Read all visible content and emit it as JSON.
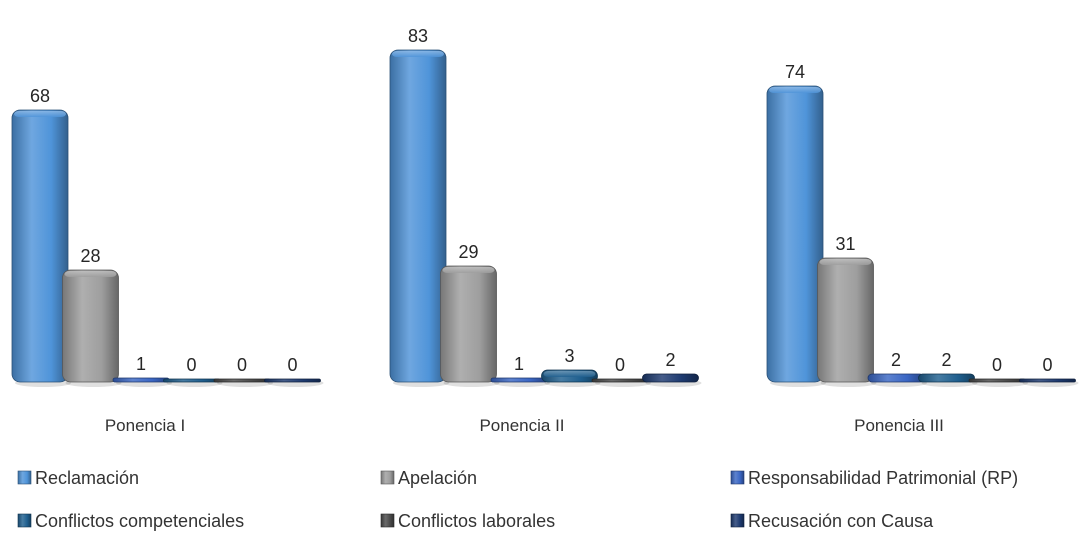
{
  "chart_data": {
    "type": "bar",
    "title": "",
    "xlabel": "",
    "ylabel": "",
    "ylim": [
      0,
      85
    ],
    "grid": false,
    "legend_position": "bottom",
    "categories": [
      "Ponencia I",
      "Ponencia II",
      "Ponencia III"
    ],
    "series": [
      {
        "name": "Reclamación",
        "values": [
          68,
          83,
          74
        ],
        "color": "#4f94d9"
      },
      {
        "name": "Apelación",
        "values": [
          28,
          29,
          31
        ],
        "color": "#9e9e9e"
      },
      {
        "name": "Responsabilidad Patrimonial (RP)",
        "values": [
          1,
          1,
          2
        ],
        "color": "#3a66c4"
      },
      {
        "name": "Conflictos competenciales",
        "values": [
          0,
          3,
          2
        ],
        "color": "#1f5f8f"
      },
      {
        "name": "Conflictos laborales",
        "values": [
          0,
          0,
          0
        ],
        "color": "#4a4a4a"
      },
      {
        "name": "Recusación con Causa",
        "values": [
          0,
          2,
          0
        ],
        "color": "#1d3a70"
      }
    ]
  }
}
